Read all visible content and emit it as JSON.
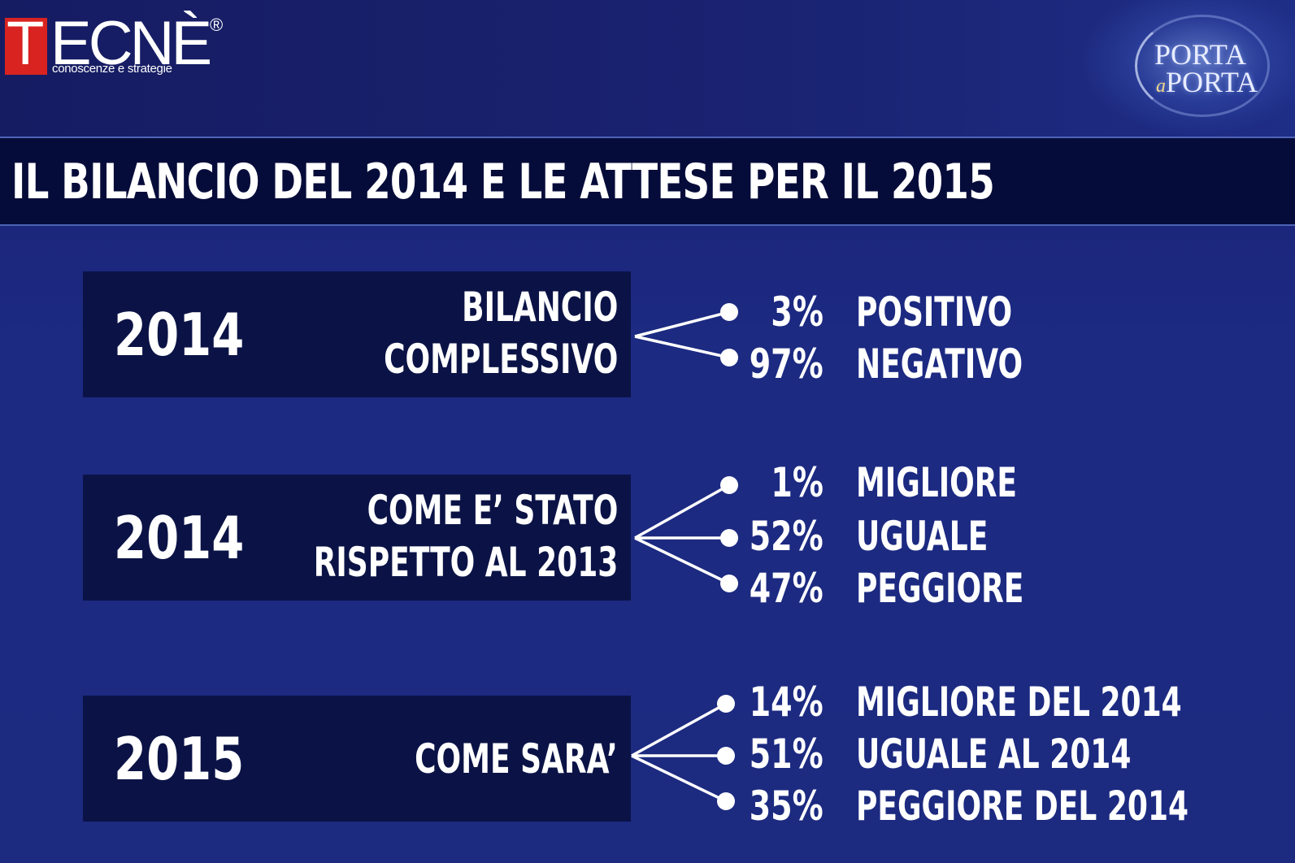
{
  "header": {
    "tecne_logo": {
      "first_letter": "T",
      "rest": "ECNÈ",
      "registered": "®",
      "tagline": "conoscenze e strategie"
    },
    "porta_logo": {
      "line1": "PORTA",
      "connector": "a",
      "line2": "PORTA"
    }
  },
  "title": "IL BILANCIO DEL 2014 E LE ATTESE PER IL 2015",
  "rows": [
    {
      "year": "2014",
      "label_lines": [
        "BILANCIO",
        "COMPLESSIVO"
      ],
      "options": [
        {
          "pct": "3%",
          "label": "POSITIVO",
          "value": 3
        },
        {
          "pct": "97%",
          "label": "NEGATIVO",
          "value": 97
        }
      ]
    },
    {
      "year": "2014",
      "label_lines": [
        "COME E’ STATO",
        "RISPETTO AL 2013"
      ],
      "options": [
        {
          "pct": "1%",
          "label": "MIGLIORE",
          "value": 1
        },
        {
          "pct": "52%",
          "label": "UGUALE",
          "value": 52
        },
        {
          "pct": "47%",
          "label": "PEGGIORE",
          "value": 47
        }
      ]
    },
    {
      "year": "2015",
      "label_lines": [
        "COME SARA’"
      ],
      "options": [
        {
          "pct": "14%",
          "label": "MIGLIORE DEL 2014",
          "value": 14
        },
        {
          "pct": "51%",
          "label": "UGUALE AL 2014",
          "value": 51
        },
        {
          "pct": "35%",
          "label": "PEGGIORE DEL 2014",
          "value": 35
        }
      ]
    }
  ],
  "colors": {
    "background": "#1c2a82",
    "title_bar": "#060c3a",
    "row_box": "#0b1346",
    "text": "#ffffff",
    "logo_red": "#d92320"
  }
}
